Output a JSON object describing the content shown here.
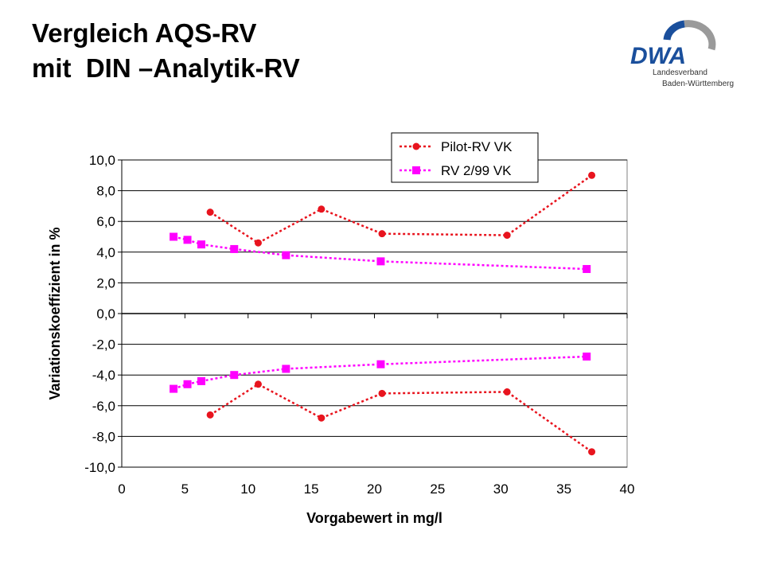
{
  "title": {
    "line1": "Vergleich AQS-RV",
    "line2": "mit  DIN –Analytik-RV"
  },
  "logo": {
    "brand": "DWA",
    "sub1": "Landesverband",
    "sub2": "Baden-Württemberg",
    "brand_color": "#1a4f9c",
    "arc_color": "#9a9a9a"
  },
  "chart_data": {
    "type": "line",
    "xlabel": "Vorgabewert in mg/l",
    "ylabel": "Variationskoeffizient in %",
    "xlim": [
      0,
      40
    ],
    "ylim": [
      -10,
      10
    ],
    "x_ticks": [
      "0",
      "5",
      "10",
      "15",
      "20",
      "25",
      "30",
      "35",
      "40"
    ],
    "y_ticks": [
      "10,0",
      "8,0",
      "6,0",
      "4,0",
      "2,0",
      "0,0",
      "-2,0",
      "-4,0",
      "-6,0",
      "-8,0",
      "-10,0"
    ],
    "grid": "horizontal",
    "legend_position": "top-right",
    "series": [
      {
        "name": "Pilot-RV VK",
        "color": "#e8141e",
        "marker": "circle",
        "x": [
          7.0,
          10.8,
          15.8,
          20.6,
          30.5,
          37.2
        ],
        "y": [
          6.6,
          4.6,
          6.8,
          5.2,
          5.1,
          9.0
        ]
      },
      {
        "name": "Pilot-RV VK",
        "show_in_legend": false,
        "color": "#e8141e",
        "marker": "circle",
        "x": [
          7.0,
          10.8,
          15.8,
          20.6,
          30.5,
          37.2
        ],
        "y": [
          -6.6,
          -4.6,
          -6.8,
          -5.2,
          -5.1,
          -9.0
        ]
      },
      {
        "name": "RV 2/99 VK",
        "color": "#ff00ff",
        "marker": "square",
        "x": [
          4.1,
          5.2,
          6.3,
          8.9,
          13.0,
          20.5,
          36.8
        ],
        "y": [
          5.0,
          4.8,
          4.5,
          4.2,
          3.8,
          3.4,
          2.9
        ]
      },
      {
        "name": "RV 2/99 VK",
        "show_in_legend": false,
        "color": "#ff00ff",
        "marker": "square",
        "x": [
          4.1,
          5.2,
          6.3,
          8.9,
          13.0,
          20.5,
          36.8
        ],
        "y": [
          -4.9,
          -4.6,
          -4.4,
          -4.0,
          -3.6,
          -3.3,
          -2.8
        ]
      }
    ]
  }
}
